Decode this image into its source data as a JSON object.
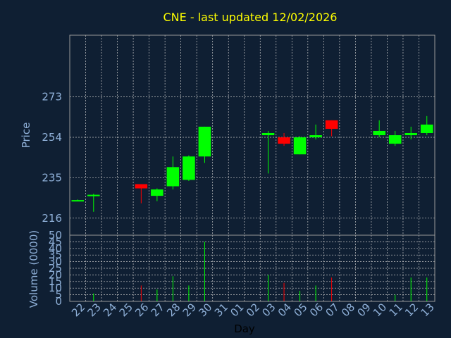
{
  "chart_data": {
    "type": "candlestick",
    "title": "CNE - last updated 12/02/2026",
    "xlabel": "Day",
    "price_panel": {
      "ylabel": "Price",
      "ylim": [
        208,
        302
      ],
      "yticks": [
        216,
        235,
        254,
        273
      ]
    },
    "volume_panel": {
      "ylabel": "Volume (0000)",
      "ylim": [
        0,
        50
      ],
      "yticks": [
        0,
        5,
        10,
        15,
        20,
        25,
        30,
        35,
        40,
        45,
        50
      ]
    },
    "x_tick_labels": [
      "22",
      "23",
      "24",
      "25",
      "26",
      "27",
      "28",
      "29",
      "30",
      "31",
      "01",
      "02",
      "03",
      "04",
      "05",
      "06",
      "07",
      "08",
      "09",
      "10",
      "11",
      "12",
      "13"
    ],
    "candles": [
      {
        "x": 0,
        "open": 224.5,
        "close": 224.5,
        "high": 224.8,
        "low": 224.2,
        "volume": 0
      },
      {
        "x": 1,
        "open": 226.5,
        "close": 227,
        "high": 227.5,
        "low": 219,
        "volume": 6
      },
      {
        "x": 4,
        "open": 232,
        "close": 230,
        "high": 232,
        "low": 223,
        "volume": 12
      },
      {
        "x": 5,
        "open": 226.5,
        "close": 229.5,
        "high": 230,
        "low": 224,
        "volume": 9
      },
      {
        "x": 6,
        "open": 231,
        "close": 240,
        "high": 245,
        "low": 229.5,
        "volume": 19
      },
      {
        "x": 7,
        "open": 234,
        "close": 245,
        "high": 245.5,
        "low": 233.5,
        "volume": 12
      },
      {
        "x": 8,
        "open": 245,
        "close": 259,
        "high": 259,
        "low": 242,
        "volume": 45
      },
      {
        "x": 12,
        "open": 255,
        "close": 256,
        "high": 257,
        "low": 237,
        "volume": 20
      },
      {
        "x": 13,
        "open": 254,
        "close": 251,
        "high": 256,
        "low": 250,
        "volume": 14
      },
      {
        "x": 14,
        "open": 246,
        "close": 254,
        "high": 254.5,
        "low": 246,
        "volume": 8
      },
      {
        "x": 15,
        "open": 254,
        "close": 255,
        "high": 260,
        "low": 253,
        "volume": 12
      },
      {
        "x": 16,
        "open": 262,
        "close": 258,
        "high": 262,
        "low": 254.5,
        "volume": 18
      },
      {
        "x": 19,
        "open": 255,
        "close": 257,
        "high": 262,
        "low": 254,
        "volume": 0
      },
      {
        "x": 20,
        "open": 251,
        "close": 255,
        "high": 257,
        "low": 250,
        "volume": 5
      },
      {
        "x": 21,
        "open": 255,
        "close": 256,
        "high": 259,
        "low": 253,
        "volume": 18
      },
      {
        "x": 22,
        "open": 256,
        "close": 260,
        "high": 264,
        "low": 255,
        "volume": 18
      }
    ],
    "colors": {
      "background": "#0f1f33",
      "plot_background": "#0f1f33",
      "up": "#00ff00",
      "down": "#ff0000",
      "title": "#ffff00",
      "axis_text": "#8fb0d8",
      "grid": "#c8c8c8",
      "frame": "#9a9a9a"
    },
    "grid": true
  }
}
